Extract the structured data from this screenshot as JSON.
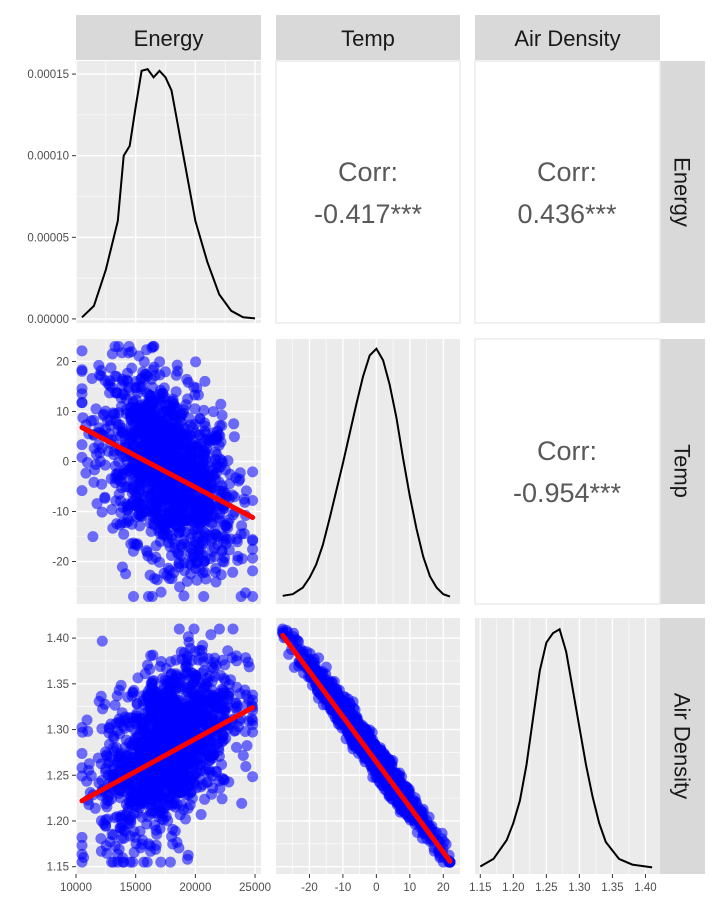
{
  "variables": [
    "Energy",
    "Temp",
    "Air Density"
  ],
  "colors": {
    "points": "#0000ff",
    "regression": "#ff0000",
    "density": "#000000",
    "panel": "#ebebeb",
    "strip": "#d9d9d9",
    "corr_text": "#595959"
  },
  "axes": {
    "energy_x": {
      "range": [
        10000,
        25500
      ],
      "ticks": [
        10000,
        15000,
        20000,
        25000
      ],
      "labels": [
        "10000",
        "15000",
        "20000",
        "25000"
      ]
    },
    "energy_density_y": {
      "range": [
        -2.5e-06,
        0.000158
      ],
      "ticks": [
        0,
        5e-05,
        0.0001,
        0.00015
      ],
      "labels": [
        "0.00000",
        "0.00005",
        "0.00010",
        "0.00015"
      ]
    },
    "temp_y": {
      "range": [
        -28.5,
        24.5
      ],
      "ticks": [
        -20,
        -10,
        0,
        10,
        20
      ],
      "labels": [
        "-20",
        "-10",
        "0",
        "10",
        "20"
      ]
    },
    "temp_x": {
      "range": [
        -30,
        25
      ],
      "ticks": [
        -20,
        -10,
        0,
        10,
        20
      ],
      "labels": [
        "-20",
        "-10",
        "0",
        "10",
        "20"
      ]
    },
    "airdensity_y": {
      "range": [
        1.142,
        1.422
      ],
      "ticks": [
        1.15,
        1.2,
        1.25,
        1.3,
        1.35,
        1.4
      ],
      "labels": [
        "1.15",
        "1.20",
        "1.25",
        "1.30",
        "1.35",
        "1.40"
      ]
    },
    "airdensity_x": {
      "range": [
        1.142,
        1.422
      ],
      "ticks": [
        1.15,
        1.2,
        1.25,
        1.3,
        1.35,
        1.4
      ],
      "labels": [
        "1.15",
        "1.20",
        "1.25",
        "1.30",
        "1.35",
        "1.40"
      ]
    }
  },
  "correlations": [
    {
      "pair": [
        "Energy",
        "Temp"
      ],
      "label": "Corr:",
      "value": "-0.417***"
    },
    {
      "pair": [
        "Energy",
        "Air Density"
      ],
      "label": "Corr:",
      "value": "0.436***"
    },
    {
      "pair": [
        "Temp",
        "Air Density"
      ],
      "label": "Corr:",
      "value": "-0.954***"
    }
  ],
  "chart_data": [
    {
      "type": "line",
      "panel": "Energy density",
      "x": [
        10500,
        11500,
        12500,
        13500,
        14000,
        14500,
        15000,
        15500,
        16000,
        16500,
        17000,
        17500,
        18000,
        18500,
        19000,
        19500,
        20000,
        21000,
        22000,
        23000,
        24000,
        25000
      ],
      "y": [
        1e-06,
        8e-06,
        3e-05,
        6e-05,
        0.0001,
        0.000106,
        0.00013,
        0.000152,
        0.000153,
        0.000148,
        0.000152,
        0.000148,
        0.00014,
        0.00012,
        0.0001,
        8e-05,
        6e-05,
        3.5e-05,
        1.5e-05,
        5e-06,
        1e-06,
        3e-07
      ]
    },
    {
      "type": "line",
      "panel": "Temp density",
      "x": [
        -28,
        -25,
        -22,
        -20,
        -18,
        -16,
        -14,
        -12,
        -10,
        -8,
        -6,
        -4,
        -2,
        0,
        2,
        4,
        6,
        8,
        10,
        12,
        14,
        16,
        18,
        20,
        22
      ],
      "y": [
        0.001,
        0.002,
        0.006,
        0.012,
        0.02,
        0.032,
        0.048,
        0.065,
        0.082,
        0.1,
        0.118,
        0.135,
        0.148,
        0.152,
        0.145,
        0.13,
        0.11,
        0.085,
        0.062,
        0.042,
        0.025,
        0.013,
        0.006,
        0.002,
        0.0005
      ]
    },
    {
      "type": "line",
      "panel": "Air Density density",
      "x": [
        1.15,
        1.17,
        1.19,
        1.2,
        1.21,
        1.22,
        1.23,
        1.24,
        1.25,
        1.26,
        1.27,
        1.28,
        1.29,
        1.3,
        1.31,
        1.32,
        1.33,
        1.34,
        1.36,
        1.38,
        1.41
      ],
      "y": [
        0.1,
        0.5,
        1.5,
        2.4,
        3.6,
        5.5,
        8,
        10.5,
        12,
        12.5,
        12.7,
        11.5,
        9.5,
        7.5,
        5.5,
        3.8,
        2.4,
        1.4,
        0.5,
        0.2,
        0.05
      ]
    },
    {
      "type": "scatter",
      "panel": "Energy vs Temp",
      "x_range": [
        10500,
        24800
      ],
      "y_range": [
        -27,
        23
      ],
      "regression": {
        "x": [
          10500,
          24800
        ],
        "y": [
          6.8,
          -11.2
        ]
      }
    },
    {
      "type": "scatter",
      "panel": "Energy vs Air Density",
      "x_range": [
        10500,
        24800
      ],
      "y_range": [
        1.155,
        1.41
      ],
      "regression": {
        "x": [
          10500,
          24800
        ],
        "y": [
          1.222,
          1.324
        ]
      }
    },
    {
      "type": "scatter",
      "panel": "Temp vs Air Density",
      "x_range": [
        -28,
        22
      ],
      "y_range": [
        1.155,
        1.41
      ],
      "regression": {
        "x": [
          -28,
          22
        ],
        "y": [
          1.403,
          1.156
        ]
      }
    }
  ]
}
